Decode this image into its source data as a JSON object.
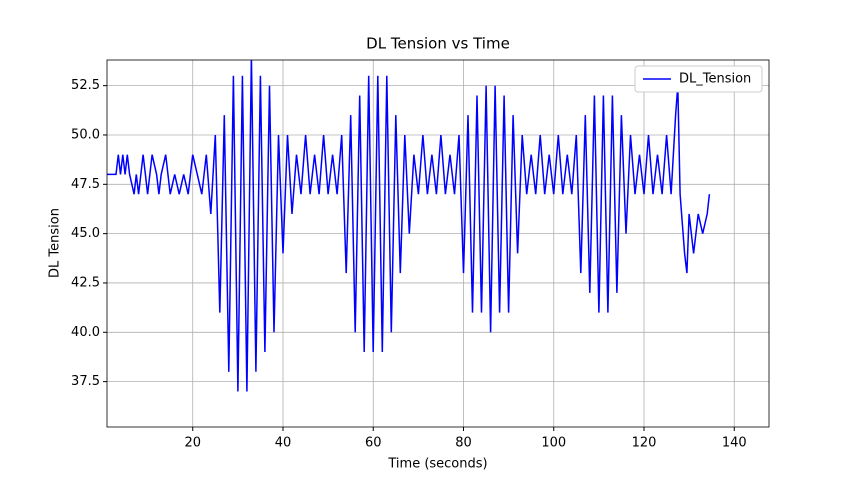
{
  "chart_data": {
    "type": "line",
    "title": "DL Tension vs Time",
    "xlabel": "Time (seconds)",
    "ylabel": "DL Tension",
    "xlim": [
      1,
      147.7
    ],
    "ylim": [
      35.2,
      53.8
    ],
    "xticks": [
      20,
      40,
      60,
      80,
      100,
      120,
      140
    ],
    "yticks": [
      37.5,
      40.0,
      42.5,
      45.0,
      47.5,
      50.0,
      52.5
    ],
    "ytick_labels": [
      "37.5",
      "40.0",
      "42.5",
      "45.0",
      "47.5",
      "50.0",
      "52.5"
    ],
    "grid": true,
    "legend": "upper right",
    "series": [
      {
        "name": "DL_Tension",
        "color": "#0000ff",
        "x": [
          1,
          2,
          3,
          3.5,
          4,
          4.5,
          5,
          5.5,
          6,
          7,
          7.5,
          8,
          9,
          9.5,
          10,
          11,
          12,
          12.5,
          13,
          14,
          15,
          16,
          17,
          18,
          19,
          20,
          21,
          22,
          23,
          24,
          25,
          26,
          27,
          28,
          29,
          30,
          31,
          32,
          33,
          34,
          35,
          36,
          37,
          38,
          39,
          40,
          41,
          42,
          43,
          44,
          45,
          46,
          47,
          48,
          49,
          50,
          51,
          52,
          53,
          54,
          55,
          56,
          57,
          58,
          59,
          60,
          61,
          62,
          63,
          64,
          65,
          66,
          67,
          68,
          69,
          70,
          71,
          72,
          73,
          74,
          75,
          76,
          77,
          78,
          79,
          80,
          81,
          82,
          83,
          84,
          85,
          86,
          87,
          88,
          89,
          90,
          91,
          92,
          93,
          94,
          95,
          96,
          97,
          98,
          99,
          100,
          101,
          102,
          103,
          104,
          105,
          106,
          107,
          108,
          109,
          110,
          111,
          112,
          113,
          114,
          115,
          116,
          117,
          118,
          119,
          120,
          121,
          122,
          123,
          124,
          125,
          126,
          127,
          127.5,
          128,
          129,
          129.5,
          130,
          131,
          132,
          133,
          134,
          134.5
        ],
        "values": [
          48,
          48,
          48,
          49,
          48,
          49,
          48,
          49,
          48,
          47,
          48,
          47,
          49,
          48,
          47,
          49,
          48,
          47,
          48,
          49,
          47,
          48,
          47,
          48,
          47,
          49,
          48,
          47,
          49,
          46,
          50,
          41,
          51,
          38,
          53,
          37,
          53,
          37,
          54,
          38,
          53,
          39,
          52.5,
          40,
          50,
          44,
          50,
          46,
          49,
          47,
          50,
          47,
          49,
          47,
          50,
          47,
          49,
          47,
          50,
          43,
          51,
          40,
          52,
          39,
          53,
          39,
          53,
          39,
          53,
          40,
          51,
          43,
          50,
          45,
          49,
          47,
          50,
          47,
          49,
          47,
          50,
          47,
          49,
          47,
          50,
          43,
          51,
          41,
          52,
          41,
          52.5,
          40,
          52.5,
          41,
          52,
          41,
          51,
          44,
          50,
          47,
          49,
          47,
          50,
          47,
          49,
          47,
          50,
          47,
          49,
          47,
          50,
          43,
          51,
          42,
          52,
          41,
          52,
          41,
          52,
          42,
          51,
          45,
          50,
          47,
          49,
          47,
          50,
          47,
          49,
          47,
          50,
          47,
          51,
          52.5,
          47,
          44,
          43,
          46,
          44,
          46,
          45,
          46,
          47
        ]
      }
    ]
  }
}
